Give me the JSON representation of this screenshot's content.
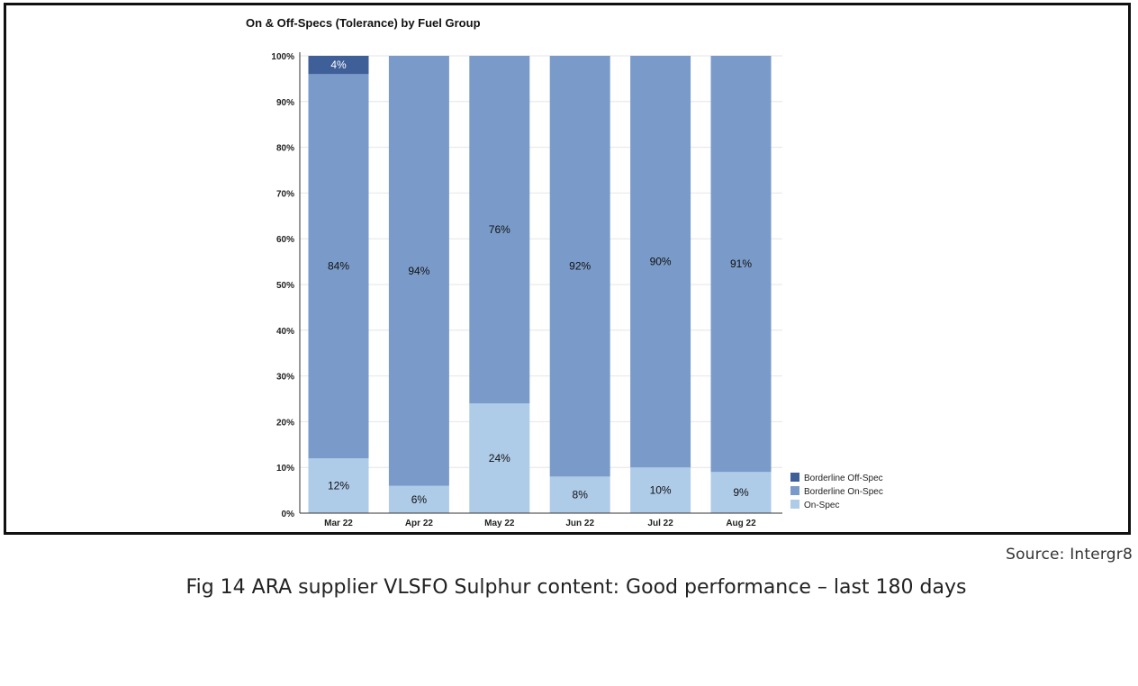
{
  "chart_data": {
    "type": "bar",
    "stacked": true,
    "title": "On & Off-Specs (Tolerance) by Fuel Group",
    "categories": [
      "Mar 22",
      "Apr 22",
      "May 22",
      "Jun 22",
      "Jul 22",
      "Aug 22"
    ],
    "series": [
      {
        "name": "On-Spec",
        "values": [
          12,
          6,
          24,
          8,
          10,
          9
        ],
        "labels": [
          "12%",
          "6%",
          "24%",
          "8%",
          "10%",
          "9%"
        ],
        "color": "#aecbe8"
      },
      {
        "name": "Borderline On-Spec",
        "values": [
          84,
          94,
          76,
          92,
          90,
          91
        ],
        "labels": [
          "84%",
          "94%",
          "76%",
          "92%",
          "90%",
          "91%"
        ],
        "color": "#7a9bc9"
      },
      {
        "name": "Borderline Off-Spec",
        "values": [
          4,
          0,
          0,
          0,
          0,
          0
        ],
        "labels": [
          "4%",
          "",
          "",
          "",
          "",
          ""
        ],
        "color": "#3f5f99"
      }
    ],
    "yticks": [
      "0%",
      "10%",
      "20%",
      "30%",
      "40%",
      "50%",
      "60%",
      "70%",
      "80%",
      "90%",
      "100%"
    ],
    "ylim": [
      0,
      100
    ],
    "xlabel": "",
    "ylabel": "",
    "grid": true,
    "legend": "bottom-right",
    "legend_order": [
      "Borderline Off-Spec",
      "Borderline On-Spec",
      "On-Spec"
    ]
  },
  "source": "Source: Intergr8",
  "caption": "Fig 14 ARA supplier VLSFO Sulphur content: Good performance – last 180 days"
}
